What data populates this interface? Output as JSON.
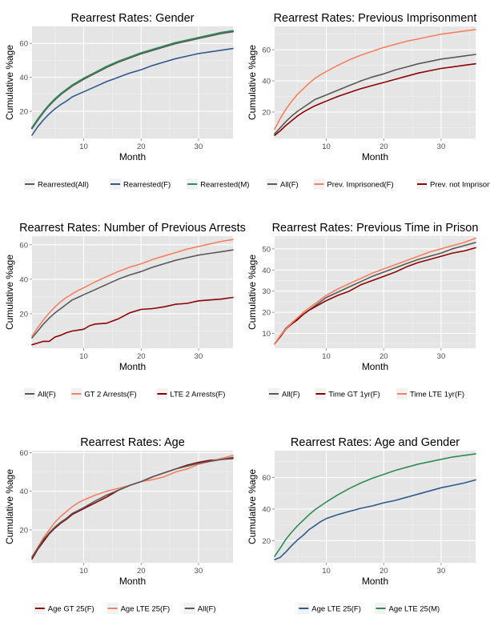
{
  "chart_data": [
    {
      "type": "line",
      "title": "Rearrest Rates: Gender",
      "xlabel": "Month",
      "ylabel": "Cumulative %age",
      "xlim": [
        1,
        36
      ],
      "ylim": [
        4,
        70
      ],
      "xticks": [
        10,
        20,
        30
      ],
      "yticks": [
        20,
        40,
        60
      ],
      "legend": "bottom",
      "series": [
        {
          "name": "Rearrested(All)",
          "color": "#595959",
          "width": 2.2,
          "x": [
            1,
            2,
            3,
            4,
            5,
            6,
            7,
            8,
            9,
            10,
            12,
            14,
            16,
            18,
            20,
            22,
            24,
            26,
            28,
            30,
            32,
            34,
            36
          ],
          "y": [
            10,
            15,
            19.5,
            23.5,
            27,
            30,
            32.5,
            35,
            37,
            39,
            42.5,
            46,
            49,
            51.5,
            54,
            56,
            58,
            60,
            61.5,
            63,
            64.5,
            66,
            67
          ]
        },
        {
          "name": "Rearrested(F)",
          "color": "#2e5a8c",
          "width": 1.6,
          "x": [
            1,
            2,
            3,
            4,
            5,
            6,
            7,
            8,
            9,
            10,
            12,
            14,
            16,
            18,
            20,
            22,
            24,
            26,
            28,
            30,
            32,
            34,
            36
          ],
          "y": [
            6,
            11,
            15,
            18.5,
            21.5,
            24,
            26,
            28.5,
            30,
            31.5,
            34.5,
            37.5,
            40,
            42.5,
            44.5,
            47,
            49,
            51,
            52.5,
            54,
            55,
            56,
            57
          ]
        },
        {
          "name": "Rearrested(M)",
          "color": "#2e8b57",
          "width": 1.6,
          "x": [
            1,
            2,
            3,
            4,
            5,
            6,
            7,
            8,
            9,
            10,
            12,
            14,
            16,
            18,
            20,
            22,
            24,
            26,
            28,
            30,
            32,
            34,
            36
          ],
          "y": [
            10.5,
            15.5,
            20,
            24,
            27.5,
            30.5,
            33,
            35.5,
            37.5,
            39.5,
            43,
            46.5,
            49.5,
            52,
            54.5,
            56.5,
            58.5,
            60.5,
            62,
            63.5,
            65,
            66.5,
            67.5
          ]
        }
      ]
    },
    {
      "type": "line",
      "title": "Rearrest Rates: Previous Imprisonment",
      "xlabel": "Month",
      "ylabel": "Cumulative %age",
      "xlim": [
        1,
        36
      ],
      "ylim": [
        3,
        75
      ],
      "xticks": [
        10,
        20,
        30
      ],
      "yticks": [
        20,
        40,
        60
      ],
      "legend": "bottom",
      "series": [
        {
          "name": "All(F)",
          "color": "#595959",
          "width": 1.6,
          "x": [
            1,
            2,
            3,
            4,
            5,
            6,
            7,
            8,
            9,
            10,
            12,
            14,
            16,
            18,
            20,
            22,
            24,
            26,
            28,
            30,
            32,
            34,
            36
          ],
          "y": [
            6,
            10,
            14,
            17.5,
            20.5,
            23,
            25.5,
            28,
            29.5,
            31,
            34,
            37,
            40,
            42.5,
            44.5,
            47,
            49,
            51,
            52.5,
            54,
            55,
            56,
            57
          ]
        },
        {
          "name": "Prev. Imprisoned(F)",
          "color": "#f4805f",
          "width": 1.6,
          "x": [
            1,
            2,
            3,
            4,
            5,
            6,
            7,
            8,
            9,
            10,
            12,
            14,
            16,
            18,
            20,
            22,
            24,
            26,
            28,
            30,
            32,
            34,
            36
          ],
          "y": [
            9,
            16,
            22,
            27,
            31.5,
            35,
            38.5,
            41.5,
            44,
            46,
            50,
            53.5,
            56.5,
            59,
            61.5,
            63.5,
            65.5,
            67,
            68.5,
            70,
            71,
            72,
            73
          ]
        },
        {
          "name": "Prev. not Imprisoned(F)",
          "color": "#8b0000",
          "width": 1.6,
          "x": [
            1,
            2,
            3,
            4,
            5,
            6,
            7,
            8,
            9,
            10,
            12,
            14,
            16,
            18,
            20,
            22,
            24,
            26,
            28,
            30,
            32,
            34,
            36
          ],
          "y": [
            5,
            8,
            11.5,
            14.5,
            17.5,
            20,
            22,
            24,
            25.5,
            27,
            30,
            32.5,
            35,
            37,
            39,
            41,
            43,
            45,
            46.5,
            48,
            49,
            50,
            51
          ]
        }
      ]
    },
    {
      "type": "line",
      "title": "Rearrest Rates: Number of Previous Arrests",
      "xlabel": "Month",
      "ylabel": "Cumulative %age",
      "xlim": [
        1,
        36
      ],
      "ylim": [
        0,
        65
      ],
      "xticks": [
        10,
        20,
        30
      ],
      "yticks": [
        20,
        40,
        60
      ],
      "legend": "bottom",
      "series": [
        {
          "name": "All(F)",
          "color": "#595959",
          "width": 1.6,
          "x": [
            1,
            2,
            3,
            4,
            5,
            6,
            7,
            8,
            9,
            10,
            12,
            14,
            16,
            18,
            20,
            22,
            24,
            26,
            28,
            30,
            32,
            34,
            36
          ],
          "y": [
            6,
            10,
            14,
            17.5,
            20.5,
            23,
            25.5,
            28,
            29.5,
            31,
            34,
            37,
            40,
            42.5,
            44.5,
            47,
            49,
            51,
            52.5,
            54,
            55,
            56,
            57
          ]
        },
        {
          "name": "GT 2 Arrests(F)",
          "color": "#f4805f",
          "width": 1.6,
          "x": [
            1,
            2,
            3,
            4,
            5,
            6,
            7,
            8,
            9,
            10,
            12,
            14,
            16,
            18,
            20,
            22,
            24,
            26,
            28,
            30,
            32,
            34,
            36
          ],
          "y": [
            7,
            12,
            16.5,
            20.5,
            24,
            27,
            29.5,
            31.5,
            33.5,
            35,
            38.5,
            41.5,
            44.5,
            47,
            49,
            51.5,
            53.5,
            55.5,
            57.5,
            59,
            60.5,
            62,
            63
          ]
        },
        {
          "name": "LTE 2 Arrests(F)",
          "color": "#8b0000",
          "width": 1.6,
          "x": [
            1,
            2,
            3,
            4,
            5,
            6,
            7,
            8,
            9,
            10,
            11,
            12,
            14,
            16,
            18,
            20,
            22,
            24,
            26,
            28,
            30,
            32,
            34,
            36
          ],
          "y": [
            2,
            3,
            4,
            4,
            6.5,
            7.5,
            9,
            10,
            10.5,
            11,
            13,
            14,
            14.5,
            17,
            20.5,
            22.5,
            23,
            24,
            25.5,
            26,
            27.5,
            28,
            28.5,
            29.5
          ]
        }
      ]
    },
    {
      "type": "line",
      "title": "Rearrest Rates: Previous Time in Prison",
      "xlabel": "Month",
      "ylabel": "Cumulative %age",
      "xlim": [
        1,
        36
      ],
      "ylim": [
        3,
        56
      ],
      "xticks": [
        10,
        20,
        30
      ],
      "yticks": [
        10,
        20,
        30,
        40,
        50
      ],
      "legend": "bottom",
      "series": [
        {
          "name": "All(F)",
          "color": "#595959",
          "width": 1.6,
          "x": [
            1,
            2,
            3,
            4,
            5,
            6,
            7,
            8,
            9,
            10,
            12,
            14,
            16,
            18,
            20,
            22,
            24,
            26,
            28,
            30,
            32,
            34,
            36
          ],
          "y": [
            5,
            9,
            12.5,
            15,
            17,
            19,
            21,
            23,
            25,
            27,
            29.5,
            32,
            34.5,
            37,
            39,
            41,
            43,
            45,
            46.5,
            48,
            50,
            51.5,
            53
          ]
        },
        {
          "name": "Time GT 1yr(F)",
          "color": "#8b0000",
          "width": 1.6,
          "x": [
            1,
            2,
            3,
            4,
            5,
            6,
            7,
            8,
            9,
            10,
            12,
            14,
            16,
            18,
            20,
            22,
            24,
            26,
            28,
            30,
            32,
            34,
            36
          ],
          "y": [
            5,
            8.5,
            12,
            14.5,
            16.5,
            19,
            21,
            22.5,
            24,
            25.5,
            28,
            30,
            33,
            35,
            37,
            39,
            41.5,
            43.5,
            45,
            46.5,
            48,
            49,
            50.5
          ]
        },
        {
          "name": "Time LTE 1yr(F)",
          "color": "#f4805f",
          "width": 1.6,
          "x": [
            1,
            2,
            3,
            4,
            5,
            6,
            7,
            8,
            9,
            10,
            12,
            14,
            16,
            18,
            20,
            22,
            24,
            26,
            28,
            30,
            32,
            34,
            36
          ],
          "y": [
            5,
            9,
            12,
            15,
            17.5,
            20,
            22,
            24,
            26,
            28,
            31,
            33.5,
            36,
            38.5,
            40.5,
            42.5,
            44.5,
            46.5,
            48.5,
            50,
            51.5,
            53,
            55
          ]
        }
      ]
    },
    {
      "type": "line",
      "title": "Rearrest Rates: Age",
      "xlabel": "Month",
      "ylabel": "Cumulative %age",
      "xlim": [
        1,
        36
      ],
      "ylim": [
        3,
        61
      ],
      "xticks": [
        10,
        20,
        30
      ],
      "yticks": [
        20,
        40,
        60
      ],
      "legend": "bottom",
      "series": [
        {
          "name": "Age GT 25(F)",
          "color": "#8b0000",
          "width": 1.6,
          "x": [
            1,
            2,
            3,
            4,
            5,
            6,
            7,
            8,
            9,
            10,
            12,
            14,
            16,
            18,
            20,
            22,
            24,
            26,
            28,
            30,
            32,
            34,
            36
          ],
          "y": [
            5,
            10,
            14,
            18,
            21,
            23.5,
            25.5,
            28,
            29.5,
            31,
            34,
            37,
            40.5,
            43,
            45,
            47.5,
            49.5,
            51.5,
            53.5,
            55,
            56,
            56.5,
            57
          ]
        },
        {
          "name": "Age LTE 25(F)",
          "color": "#f4805f",
          "width": 1.6,
          "x": [
            1,
            2,
            3,
            4,
            5,
            6,
            7,
            8,
            9,
            10,
            12,
            14,
            16,
            18,
            20,
            22,
            24,
            26,
            28,
            30,
            32,
            34,
            36
          ],
          "y": [
            6,
            11,
            16,
            20,
            24,
            27,
            29.5,
            32,
            34,
            35.5,
            38,
            40,
            41.5,
            43,
            45,
            46,
            47.5,
            50,
            51.5,
            54,
            55.5,
            57,
            58.5
          ]
        },
        {
          "name": "All(F)",
          "color": "#595959",
          "width": 1.6,
          "x": [
            1,
            2,
            3,
            4,
            5,
            6,
            7,
            8,
            9,
            10,
            12,
            14,
            16,
            18,
            20,
            22,
            24,
            26,
            28,
            30,
            32,
            34,
            36
          ],
          "y": [
            6,
            10.5,
            15,
            18.5,
            21.5,
            24,
            26,
            28.5,
            30,
            31.5,
            35,
            38,
            40.5,
            43,
            45,
            47.5,
            49.5,
            51.5,
            53,
            54.5,
            55.5,
            56.5,
            57.5
          ]
        }
      ]
    },
    {
      "type": "line",
      "title": "Rearrest Rates: Age and Gender",
      "xlabel": "Month",
      "ylabel": "Cumulative %age",
      "xlim": [
        1,
        36
      ],
      "ylim": [
        6,
        77
      ],
      "xticks": [
        10,
        20,
        30
      ],
      "yticks": [
        20,
        40,
        60
      ],
      "legend": "bottom",
      "series": [
        {
          "name": "Age LTE 25(F)",
          "color": "#2e5a8c",
          "width": 1.6,
          "x": [
            1,
            2,
            3,
            4,
            5,
            6,
            7,
            8,
            9,
            10,
            12,
            14,
            16,
            18,
            20,
            22,
            24,
            26,
            28,
            30,
            32,
            34,
            36
          ],
          "y": [
            8,
            9.5,
            13,
            17,
            20.5,
            23.5,
            27,
            29.5,
            32,
            34,
            36.5,
            38.5,
            40.5,
            42,
            44,
            45.5,
            47.5,
            49.5,
            51.5,
            53.5,
            55,
            56.5,
            58.5
          ]
        },
        {
          "name": "Age LTE 25(M)",
          "color": "#2e8b57",
          "width": 1.6,
          "x": [
            1,
            2,
            3,
            4,
            5,
            6,
            7,
            8,
            9,
            10,
            12,
            14,
            16,
            18,
            20,
            22,
            24,
            26,
            28,
            30,
            32,
            34,
            36
          ],
          "y": [
            10,
            15.5,
            21,
            25.5,
            29.5,
            33,
            36.5,
            39.5,
            42,
            44.5,
            49,
            53,
            56.5,
            59.5,
            62,
            64.5,
            66.5,
            68.5,
            70,
            71.5,
            73,
            74,
            75
          ]
        }
      ]
    }
  ]
}
